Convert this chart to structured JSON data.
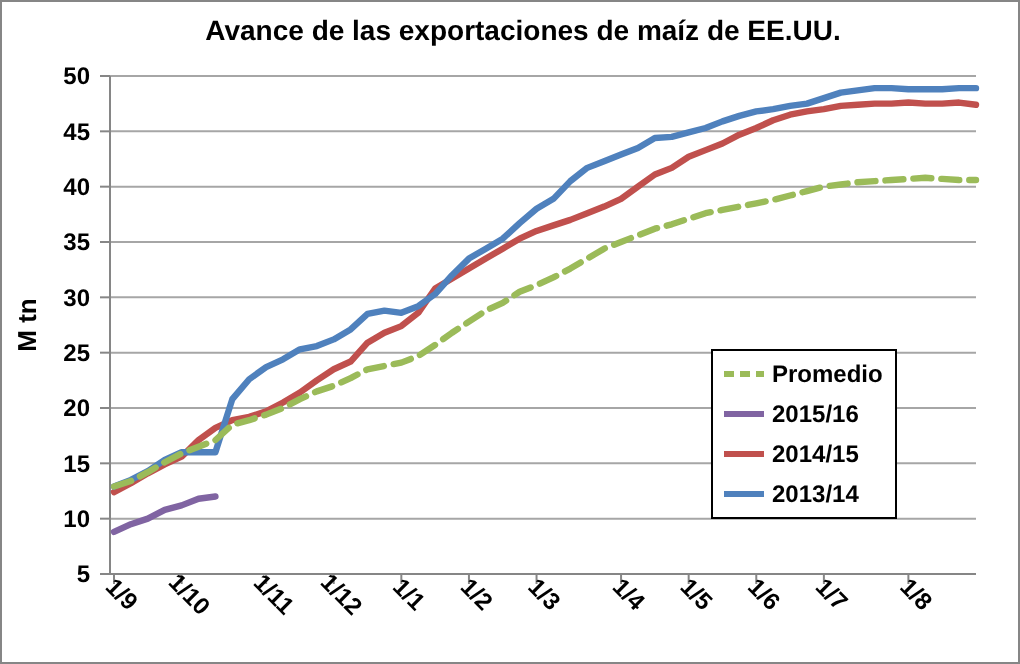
{
  "chart_data": {
    "type": "line",
    "title": "Avance de las exportaciones de maíz de EE.UU.",
    "ylabel": "M tn",
    "categories": [
      "1/9",
      null,
      null,
      null,
      "1/10",
      null,
      null,
      null,
      null,
      "1/11",
      null,
      null,
      null,
      "1/12",
      null,
      null,
      null,
      "1/1",
      null,
      null,
      null,
      "1/2",
      null,
      null,
      null,
      "1/3",
      null,
      null,
      null,
      null,
      "1/4",
      null,
      null,
      null,
      "1/5",
      null,
      null,
      null,
      "1/6",
      null,
      null,
      null,
      "1/7",
      null,
      null,
      null,
      null,
      "1/8",
      null,
      null,
      null,
      null
    ],
    "ylim": [
      5,
      50
    ],
    "yticks": [
      5,
      10,
      15,
      20,
      25,
      30,
      35,
      40,
      45,
      50
    ],
    "grid": "y",
    "legend": "bottom right",
    "marker": "none",
    "series": [
      {
        "name": "Promedio",
        "color": "#9bbb59",
        "line_style": "dashed",
        "values": [
          12.9,
          13.4,
          14.2,
          15.1,
          15.9,
          16.5,
          17.1,
          18.5,
          18.9,
          19.4,
          20.0,
          20.8,
          21.5,
          22.0,
          22.7,
          23.5,
          23.8,
          24.1,
          24.7,
          25.7,
          26.8,
          27.8,
          28.8,
          29.5,
          30.5,
          31.1,
          31.8,
          32.6,
          33.5,
          34.4,
          35.0,
          35.6,
          36.2,
          36.6,
          37.1,
          37.6,
          37.9,
          38.2,
          38.5,
          38.8,
          39.2,
          39.6,
          40.0,
          40.2,
          40.4,
          40.5,
          40.6,
          40.7,
          40.8,
          40.7,
          40.6,
          40.6
        ]
      },
      {
        "name": "2015/16",
        "color": "#8064a2",
        "line_style": "solid",
        "values": [
          8.8,
          9.5,
          10.0,
          10.8,
          11.2,
          11.8,
          12.0,
          null,
          null,
          null,
          null,
          null,
          null,
          null,
          null,
          null,
          null,
          null,
          null,
          null,
          null,
          null,
          null,
          null,
          null,
          null,
          null,
          null,
          null,
          null,
          null,
          null,
          null,
          null,
          null,
          null,
          null,
          null,
          null,
          null,
          null,
          null,
          null,
          null,
          null,
          null,
          null,
          null,
          null,
          null,
          null,
          null
        ]
      },
      {
        "name": "2014/15",
        "color": "#c0504d",
        "line_style": "solid",
        "values": [
          12.4,
          13.2,
          14.1,
          14.9,
          15.6,
          17.1,
          18.2,
          18.9,
          19.2,
          19.7,
          20.5,
          21.4,
          22.5,
          23.5,
          24.2,
          25.9,
          26.8,
          27.4,
          28.6,
          30.8,
          31.7,
          32.6,
          33.5,
          34.4,
          35.3,
          36.0,
          36.5,
          37.0,
          37.6,
          38.2,
          38.9,
          40.0,
          41.1,
          41.7,
          42.7,
          43.3,
          43.9,
          44.7,
          45.3,
          46.0,
          46.5,
          46.8,
          47.0,
          47.3,
          47.4,
          47.5,
          47.5,
          47.6,
          47.5,
          47.5,
          47.6,
          47.4
        ]
      },
      {
        "name": "2013/14",
        "color": "#4f81bd",
        "line_style": "solid",
        "values": [
          12.9,
          13.5,
          14.3,
          15.3,
          16.0,
          16.0,
          16.0,
          20.8,
          22.6,
          23.7,
          24.4,
          25.3,
          25.6,
          26.2,
          27.1,
          28.5,
          28.8,
          28.6,
          29.2,
          30.3,
          32.0,
          33.5,
          34.4,
          35.3,
          36.7,
          38.0,
          38.9,
          40.5,
          41.7,
          42.3,
          42.9,
          43.5,
          44.4,
          44.5,
          44.9,
          45.3,
          45.9,
          46.4,
          46.8,
          47.0,
          47.3,
          47.5,
          48.0,
          48.5,
          48.7,
          48.9,
          48.9,
          48.8,
          48.8,
          48.8,
          48.9,
          48.9
        ]
      }
    ]
  }
}
